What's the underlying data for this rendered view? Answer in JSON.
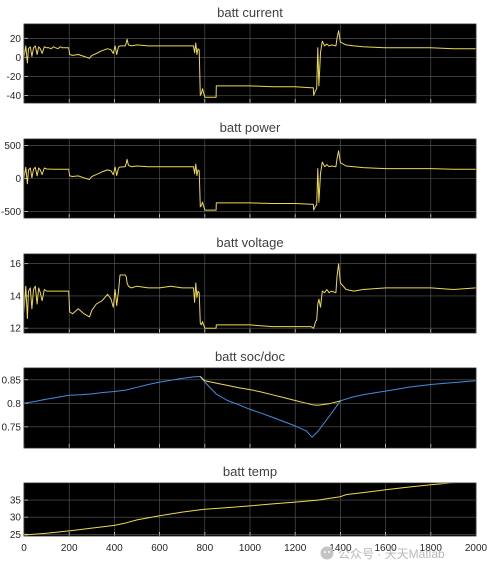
{
  "chart_data": [
    {
      "type": "line",
      "title": "batt current",
      "xlim": [
        0,
        2000
      ],
      "ylim": [
        -48,
        35
      ],
      "yticks": [
        -40,
        -20,
        0,
        20
      ],
      "ytick_labels": [
        "-40",
        "-20",
        "0",
        "20"
      ],
      "grid": true,
      "background": "#000000",
      "series": [
        {
          "color": "#edd94e",
          "x": [
            0,
            8,
            15,
            20,
            28,
            35,
            42,
            50,
            58,
            65,
            72,
            80,
            90,
            100,
            110,
            120,
            130,
            140,
            150,
            160,
            170,
            180,
            190,
            198,
            202,
            215,
            240,
            265,
            290,
            300,
            320,
            345,
            370,
            385,
            395,
            403,
            410,
            418,
            425,
            432,
            440,
            448,
            452,
            456,
            462,
            475,
            500,
            550,
            600,
            650,
            700,
            750,
            755,
            760,
            765,
            770,
            775,
            780,
            785,
            790,
            800,
            810,
            820,
            840,
            850,
            851,
            900,
            1000,
            1100,
            1200,
            1270,
            1280,
            1282,
            1290,
            1295,
            1300,
            1305,
            1312,
            1320,
            1330,
            1340,
            1350,
            1360,
            1380,
            1385,
            1392,
            1400,
            1425,
            1460,
            1500,
            1600,
            1700,
            1800,
            1900,
            2000
          ],
          "y": [
            0,
            12,
            -6,
            9,
            11,
            1,
            10,
            12,
            3,
            11,
            9,
            4,
            11,
            10,
            10,
            9,
            11,
            10,
            9,
            11,
            10,
            10,
            10,
            10,
            3,
            2,
            3,
            1,
            -1,
            2,
            4,
            7,
            9,
            8,
            4,
            12,
            3,
            11,
            12,
            12,
            12,
            12,
            15,
            19,
            13,
            12,
            13,
            12,
            12,
            12,
            12,
            12,
            5,
            15,
            3,
            9,
            8,
            -40,
            -38,
            -33,
            -42,
            -42,
            -42,
            -42,
            -42,
            -30,
            -30,
            -30,
            -31,
            -31,
            -32,
            -32,
            -40,
            -35,
            -33,
            10,
            -30,
            5,
            17,
            12,
            14,
            12,
            13,
            12,
            20,
            28,
            16,
            13,
            12,
            11,
            10,
            10,
            10,
            9,
            9
          ]
        }
      ]
    },
    {
      "type": "line",
      "title": "batt power",
      "xlim": [
        0,
        2000
      ],
      "ylim": [
        -600,
        600
      ],
      "yticks": [
        -500,
        0,
        500
      ],
      "ytick_labels": [
        "-500",
        "0",
        "500"
      ],
      "grid": true,
      "background": "#000000",
      "series": [
        {
          "color": "#edd94e",
          "x": [
            0,
            8,
            15,
            20,
            28,
            35,
            42,
            50,
            58,
            65,
            72,
            80,
            90,
            100,
            130,
            160,
            190,
            198,
            202,
            215,
            240,
            265,
            290,
            300,
            320,
            345,
            370,
            385,
            395,
            403,
            410,
            418,
            425,
            432,
            440,
            448,
            452,
            456,
            462,
            475,
            500,
            550,
            600,
            650,
            700,
            750,
            755,
            760,
            765,
            770,
            775,
            780,
            785,
            790,
            800,
            810,
            820,
            840,
            850,
            851,
            900,
            1000,
            1100,
            1200,
            1270,
            1280,
            1282,
            1290,
            1295,
            1300,
            1305,
            1312,
            1320,
            1330,
            1340,
            1350,
            1360,
            1380,
            1385,
            1392,
            1400,
            1425,
            1460,
            1500,
            1600,
            1700,
            1800,
            1900,
            2000
          ],
          "y": [
            0,
            170,
            -80,
            130,
            160,
            10,
            140,
            170,
            40,
            160,
            130,
            60,
            160,
            145,
            140,
            140,
            140,
            140,
            40,
            30,
            40,
            10,
            -15,
            30,
            60,
            100,
            130,
            115,
            60,
            175,
            45,
            160,
            175,
            175,
            180,
            180,
            230,
            290,
            200,
            180,
            190,
            180,
            180,
            180,
            180,
            180,
            75,
            220,
            45,
            130,
            115,
            -430,
            -410,
            -360,
            -480,
            -480,
            -480,
            -480,
            -480,
            -370,
            -370,
            -370,
            -380,
            -380,
            -390,
            -390,
            -480,
            -420,
            -400,
            150,
            -360,
            75,
            250,
            180,
            210,
            180,
            190,
            180,
            300,
            420,
            240,
            190,
            180,
            165,
            150,
            150,
            150,
            140,
            140
          ]
        }
      ]
    },
    {
      "type": "line",
      "title": "batt voltage",
      "xlim": [
        0,
        2000
      ],
      "ylim": [
        11.7,
        16.6
      ],
      "yticks": [
        12,
        14,
        16
      ],
      "ytick_labels": [
        "12",
        "14",
        "16"
      ],
      "grid": true,
      "background": "#000000",
      "series": [
        {
          "color": "#edd94e",
          "x": [
            0,
            8,
            15,
            20,
            28,
            35,
            42,
            50,
            58,
            65,
            72,
            80,
            90,
            100,
            130,
            160,
            190,
            198,
            202,
            215,
            240,
            265,
            290,
            300,
            320,
            345,
            370,
            385,
            395,
            403,
            410,
            418,
            425,
            432,
            440,
            448,
            452,
            456,
            462,
            475,
            500,
            550,
            600,
            650,
            700,
            750,
            755,
            760,
            765,
            770,
            775,
            780,
            785,
            790,
            800,
            810,
            820,
            840,
            850,
            851,
            900,
            1000,
            1100,
            1200,
            1270,
            1280,
            1282,
            1290,
            1295,
            1300,
            1305,
            1312,
            1320,
            1330,
            1340,
            1350,
            1360,
            1380,
            1385,
            1392,
            1400,
            1425,
            1460,
            1500,
            1600,
            1700,
            1800,
            1900,
            2000
          ],
          "y": [
            13.0,
            14.6,
            12.6,
            14.3,
            14.5,
            13.2,
            14.4,
            14.6,
            13.5,
            14.5,
            14.2,
            13.7,
            14.4,
            14.3,
            14.3,
            14.3,
            14.3,
            14.3,
            13.0,
            12.9,
            13.2,
            12.9,
            12.7,
            13.1,
            13.5,
            13.7,
            14.1,
            13.8,
            13.3,
            14.4,
            13.4,
            14.3,
            15.3,
            15.3,
            15.3,
            15.3,
            15.2,
            14.8,
            14.6,
            14.5,
            14.6,
            14.5,
            14.5,
            14.6,
            14.5,
            14.5,
            13.6,
            14.8,
            13.9,
            14.3,
            14.2,
            12.3,
            12.2,
            12.4,
            12.0,
            12.0,
            12.0,
            12.0,
            12.0,
            12.2,
            12.2,
            12.2,
            12.1,
            12.1,
            12.1,
            12.0,
            12.0,
            12.4,
            12.5,
            13.5,
            13.8,
            13.3,
            14.3,
            14.2,
            14.4,
            14.2,
            14.3,
            14.2,
            15.2,
            16.0,
            14.8,
            14.4,
            14.3,
            14.4,
            14.5,
            14.5,
            14.5,
            14.4,
            14.5
          ]
        }
      ]
    },
    {
      "type": "line",
      "title": "batt soc/doc",
      "xlim": [
        0,
        2000
      ],
      "ylim": [
        0.705,
        0.875
      ],
      "yticks": [
        0.75,
        0.8,
        0.85
      ],
      "ytick_labels": [
        "0.75",
        "0.8",
        "0.85"
      ],
      "grid": true,
      "background": "#000000",
      "series": [
        {
          "color": "#3f8fe2",
          "x": [
            0,
            50,
            100,
            150,
            200,
            250,
            300,
            350,
            400,
            450,
            500,
            550,
            600,
            650,
            700,
            750,
            780,
            800,
            850,
            900,
            950,
            1000,
            1050,
            1100,
            1150,
            1200,
            1250,
            1275,
            1300,
            1350,
            1400,
            1450,
            1500,
            1550,
            1600,
            1650,
            1700,
            1750,
            1800,
            1850,
            1900,
            1950,
            2000
          ],
          "y": [
            0.8,
            0.804,
            0.809,
            0.813,
            0.817,
            0.818,
            0.82,
            0.823,
            0.825,
            0.828,
            0.834,
            0.84,
            0.845,
            0.849,
            0.853,
            0.856,
            0.857,
            0.845,
            0.82,
            0.806,
            0.797,
            0.787,
            0.779,
            0.77,
            0.761,
            0.752,
            0.741,
            0.728,
            0.74,
            0.772,
            0.805,
            0.813,
            0.818,
            0.822,
            0.826,
            0.83,
            0.834,
            0.837,
            0.84,
            0.842,
            0.844,
            0.846,
            0.848
          ]
        },
        {
          "color": "#edd94e",
          "x": [
            780,
            800,
            850,
            900,
            950,
            1000,
            1050,
            1100,
            1150,
            1200,
            1250,
            1275,
            1300,
            1350,
            1400
          ],
          "y": [
            0.857,
            0.848,
            0.843,
            0.838,
            0.833,
            0.829,
            0.824,
            0.818,
            0.812,
            0.806,
            0.8,
            0.797,
            0.796,
            0.799,
            0.805
          ]
        }
      ]
    },
    {
      "type": "line",
      "title": "batt temp",
      "xlim": [
        0,
        2000
      ],
      "ylim": [
        24.5,
        40
      ],
      "yticks": [
        25,
        30,
        35
      ],
      "ytick_labels": [
        "25",
        "30",
        "35"
      ],
      "xticks": [
        0,
        200,
        400,
        600,
        800,
        1000,
        1200,
        1400,
        1600,
        1800,
        2000
      ],
      "xtick_labels": [
        "0",
        "200",
        "400",
        "600",
        "800",
        "1000",
        "1200",
        "1400",
        "1600",
        "1800",
        "2000"
      ],
      "grid": true,
      "background": "#000000",
      "series": [
        {
          "color": "#edd94e",
          "x": [
            0,
            100,
            200,
            300,
            400,
            450,
            500,
            600,
            700,
            780,
            800,
            900,
            1000,
            1100,
            1200,
            1300,
            1350,
            1400,
            1425,
            1500,
            1600,
            1700,
            1800,
            1850,
            1900,
            2000
          ],
          "y": [
            24.8,
            25.3,
            26.0,
            26.8,
            27.6,
            28.3,
            29.2,
            30.4,
            31.5,
            32.2,
            32.3,
            32.8,
            33.3,
            33.9,
            34.4,
            35.0,
            35.5,
            36.0,
            36.6,
            37.2,
            38.0,
            38.8,
            39.5,
            39.8,
            40.1,
            40.6
          ]
        }
      ]
    }
  ],
  "watermark": {
    "text": "公众号 · 天天Matlab"
  }
}
